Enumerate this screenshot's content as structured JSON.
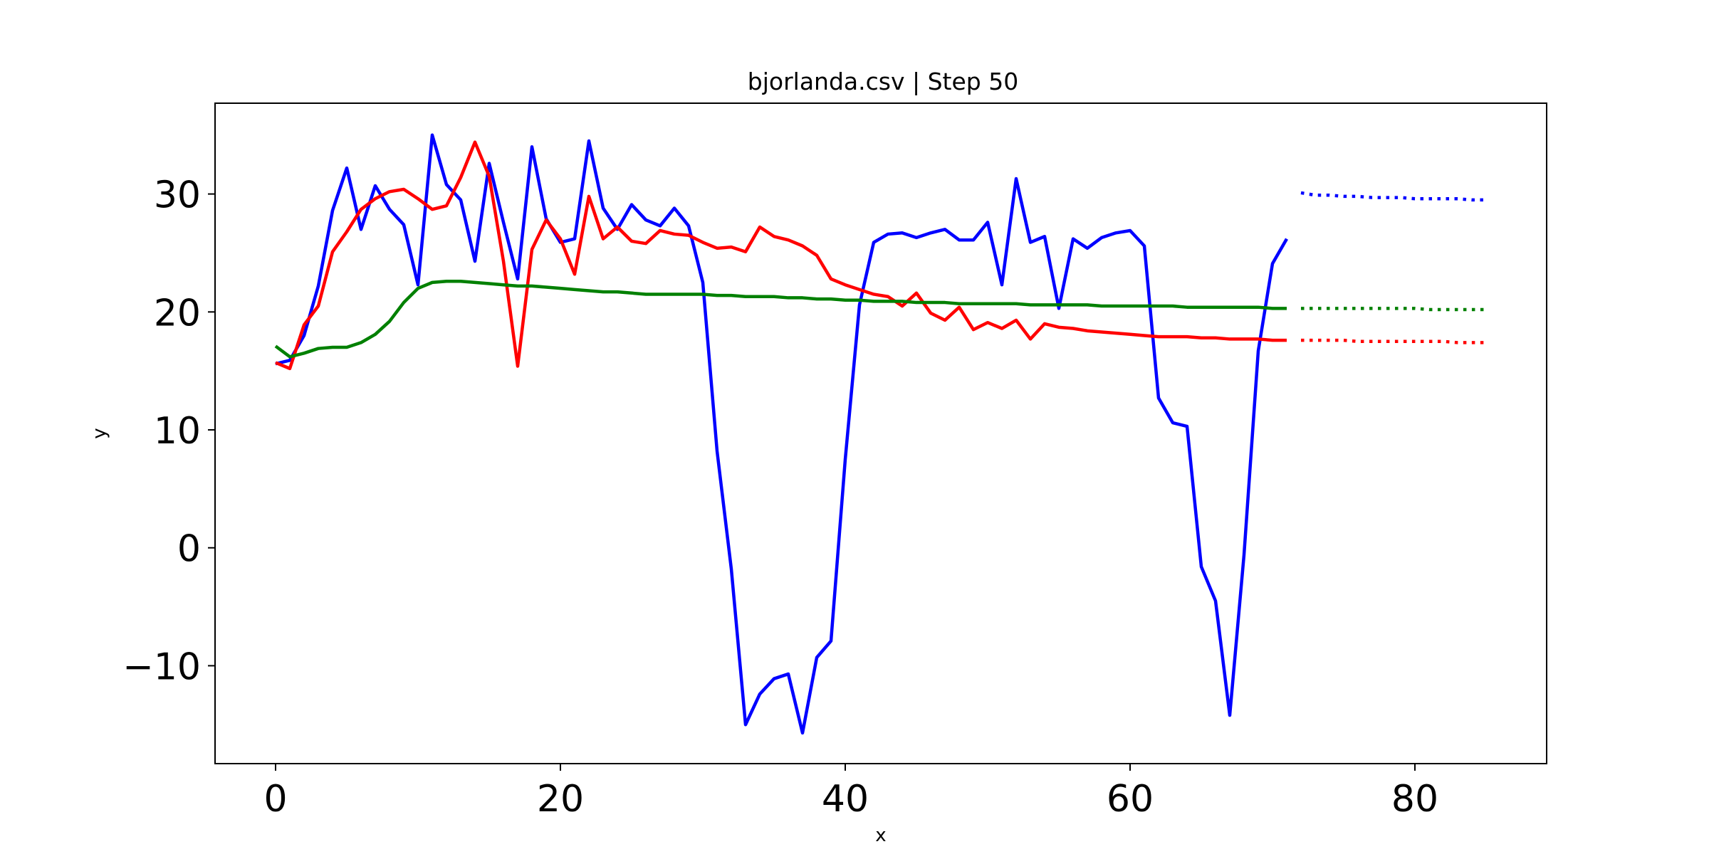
{
  "chart_data": {
    "type": "line",
    "title": "bjorlanda.csv | Step 50",
    "xlabel": "x",
    "ylabel": "y",
    "xlim": [
      -4.25,
      89.25
    ],
    "ylim": [
      -18.3,
      37.7
    ],
    "xticks": [
      0,
      20,
      40,
      60,
      80
    ],
    "yticks": [
      -10,
      0,
      10,
      20,
      30
    ],
    "xtick_labels": [
      "0",
      "20",
      "40",
      "60",
      "80"
    ],
    "ytick_labels": [
      "−10",
      "0",
      "10",
      "20",
      "30"
    ],
    "grid": false,
    "legend": "none",
    "series": [
      {
        "color": "#0000ff",
        "style": "solid",
        "x": [
          0,
          1,
          2,
          3,
          4,
          5,
          6,
          7,
          8,
          9,
          10,
          11,
          12,
          13,
          14,
          15,
          16,
          17,
          18,
          19,
          20,
          21,
          22,
          23,
          24,
          25,
          26,
          27,
          28,
          29,
          30,
          31,
          32,
          33,
          34,
          35,
          36,
          37,
          38,
          39,
          40,
          41,
          42,
          43,
          44,
          45,
          46,
          47,
          48,
          49,
          50,
          51,
          52,
          53,
          54,
          55,
          56,
          57,
          58,
          59,
          60,
          61,
          62,
          63,
          64,
          65,
          66,
          67,
          68,
          69,
          70,
          71
        ],
        "values": [
          15.6,
          15.9,
          18.0,
          22.2,
          28.6,
          32.2,
          27.0,
          30.7,
          28.7,
          27.4,
          22.3,
          35.0,
          30.8,
          29.5,
          24.3,
          32.6,
          27.6,
          22.8,
          34.0,
          27.9,
          25.9,
          26.2,
          34.5,
          28.8,
          27.0,
          29.1,
          27.8,
          27.3,
          28.8,
          27.3,
          22.5,
          8.2,
          -1.8,
          -15.0,
          -12.4,
          -11.1,
          -10.7,
          -15.7,
          -9.3,
          -7.9,
          7.5,
          20.6,
          25.9,
          26.6,
          26.7,
          26.3,
          26.7,
          27.0,
          26.1,
          26.1,
          27.6,
          22.3,
          31.3,
          25.9,
          26.4,
          20.3,
          26.2,
          25.4,
          26.3,
          26.7,
          26.9,
          25.6,
          12.7,
          10.6,
          10.3,
          -1.6,
          -4.5,
          -14.2,
          -0.6,
          16.7,
          24.1,
          26.2
        ]
      },
      {
        "color": "#ff0000",
        "style": "solid",
        "x": [
          0,
          1,
          2,
          3,
          4,
          5,
          6,
          7,
          8,
          9,
          10,
          11,
          12,
          13,
          14,
          15,
          16,
          17,
          18,
          19,
          20,
          21,
          22,
          23,
          24,
          25,
          26,
          27,
          28,
          29,
          30,
          31,
          32,
          33,
          34,
          35,
          36,
          37,
          38,
          39,
          40,
          41,
          42,
          43,
          44,
          45,
          46,
          47,
          48,
          49,
          50,
          51,
          52,
          53,
          54,
          55,
          56,
          57,
          58,
          59,
          60,
          61,
          62,
          63,
          64,
          65,
          66,
          67,
          68,
          69,
          70,
          71
        ],
        "values": [
          15.7,
          15.2,
          18.9,
          20.5,
          25.1,
          26.8,
          28.7,
          29.6,
          30.2,
          30.4,
          29.6,
          28.7,
          29.0,
          31.4,
          34.4,
          31.5,
          24.3,
          15.4,
          25.3,
          27.8,
          26.2,
          23.2,
          29.8,
          26.2,
          27.2,
          26.0,
          25.8,
          26.9,
          26.6,
          26.5,
          25.9,
          25.4,
          25.5,
          25.1,
          27.2,
          26.4,
          26.1,
          25.6,
          24.8,
          22.8,
          22.3,
          21.9,
          21.5,
          21.3,
          20.5,
          21.6,
          19.9,
          19.3,
          20.4,
          18.5,
          19.1,
          18.6,
          19.3,
          17.7,
          19.0,
          18.7,
          18.6,
          18.4,
          18.3,
          18.2,
          18.1,
          18.0,
          17.9,
          17.9,
          17.9,
          17.8,
          17.8,
          17.7,
          17.7,
          17.7,
          17.6,
          17.6
        ]
      },
      {
        "color": "#008000",
        "style": "solid",
        "x": [
          0,
          1,
          2,
          3,
          4,
          5,
          6,
          7,
          8,
          9,
          10,
          11,
          12,
          13,
          14,
          15,
          16,
          17,
          18,
          19,
          20,
          21,
          22,
          23,
          24,
          25,
          26,
          27,
          28,
          29,
          30,
          31,
          32,
          33,
          34,
          35,
          36,
          37,
          38,
          39,
          40,
          41,
          42,
          43,
          44,
          45,
          46,
          47,
          48,
          49,
          50,
          51,
          52,
          53,
          54,
          55,
          56,
          57,
          58,
          59,
          60,
          61,
          62,
          63,
          64,
          65,
          66,
          67,
          68,
          69,
          70,
          71
        ],
        "values": [
          17.1,
          16.2,
          16.5,
          16.9,
          17.0,
          17.0,
          17.4,
          18.1,
          19.2,
          20.8,
          22.0,
          22.5,
          22.6,
          22.6,
          22.5,
          22.4,
          22.3,
          22.2,
          22.2,
          22.1,
          22.0,
          21.9,
          21.8,
          21.7,
          21.7,
          21.6,
          21.5,
          21.5,
          21.5,
          21.5,
          21.5,
          21.4,
          21.4,
          21.3,
          21.3,
          21.3,
          21.2,
          21.2,
          21.1,
          21.1,
          21.0,
          21.0,
          20.9,
          20.9,
          20.9,
          20.8,
          20.8,
          20.8,
          20.7,
          20.7,
          20.7,
          20.7,
          20.7,
          20.6,
          20.6,
          20.6,
          20.6,
          20.6,
          20.5,
          20.5,
          20.5,
          20.5,
          20.5,
          20.5,
          20.4,
          20.4,
          20.4,
          20.4,
          20.4,
          20.4,
          20.3,
          20.3
        ]
      },
      {
        "color": "#0000ff",
        "style": "dotted",
        "x": [
          72,
          73,
          74,
          75,
          76,
          77,
          78,
          79,
          80,
          81,
          82,
          83,
          84,
          85
        ],
        "values": [
          30.1,
          29.9,
          29.9,
          29.8,
          29.8,
          29.7,
          29.7,
          29.7,
          29.6,
          29.6,
          29.6,
          29.6,
          29.5,
          29.5
        ]
      },
      {
        "color": "#008000",
        "style": "dotted",
        "x": [
          72,
          73,
          74,
          75,
          76,
          77,
          78,
          79,
          80,
          81,
          82,
          83,
          84,
          85
        ],
        "values": [
          20.3,
          20.3,
          20.3,
          20.3,
          20.3,
          20.3,
          20.3,
          20.3,
          20.3,
          20.2,
          20.2,
          20.2,
          20.2,
          20.2
        ]
      },
      {
        "color": "#ff0000",
        "style": "dotted",
        "x": [
          72,
          73,
          74,
          75,
          76,
          77,
          78,
          79,
          80,
          81,
          82,
          83,
          84,
          85
        ],
        "values": [
          17.6,
          17.6,
          17.6,
          17.6,
          17.5,
          17.5,
          17.5,
          17.5,
          17.5,
          17.5,
          17.5,
          17.4,
          17.4,
          17.4
        ]
      }
    ]
  }
}
